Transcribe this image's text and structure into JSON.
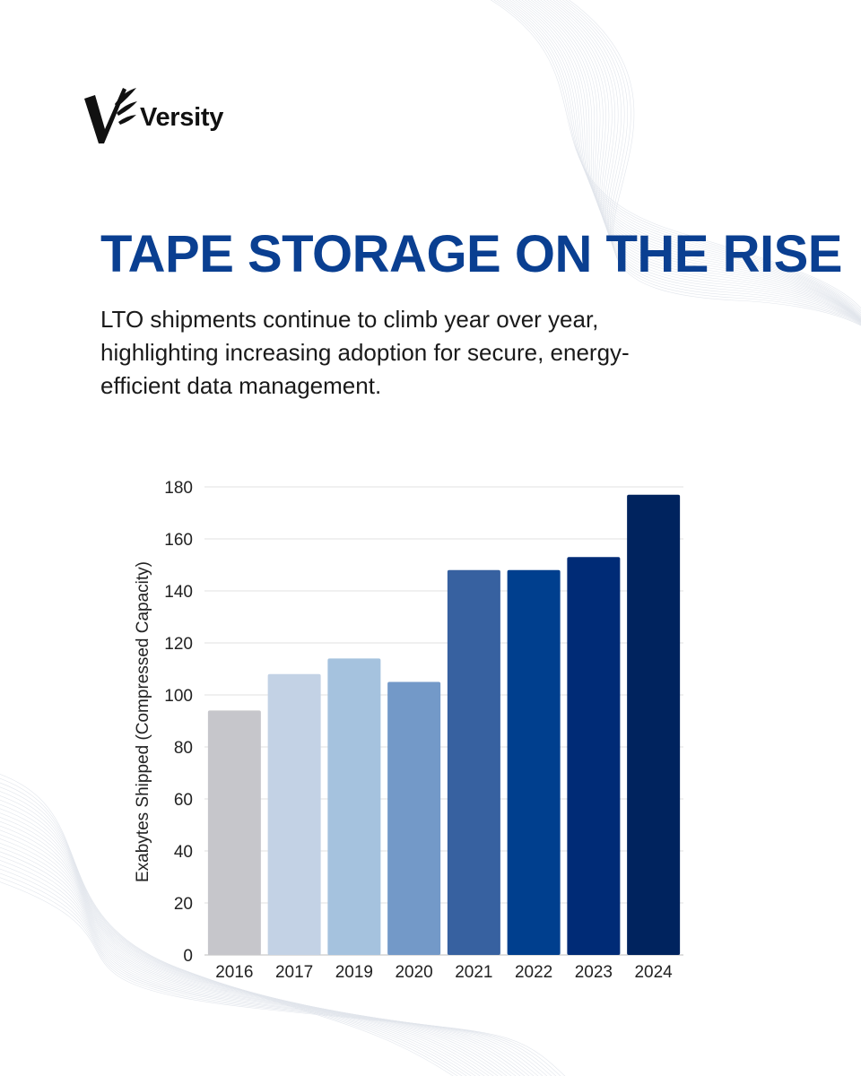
{
  "brand": {
    "name": "Versity",
    "logo_icon": "versity-wing-v-logo"
  },
  "header": {
    "title": "TAPE STORAGE ON THE RISE",
    "subtitle_line1": "LTO shipments continue to climb year over year,",
    "subtitle_line2": "highlighting increasing adoption for secure, energy-",
    "subtitle_line3": "efficient data management."
  },
  "colors": {
    "title": "#0a3f91",
    "background": "#ffffff"
  },
  "chart_data": {
    "type": "bar",
    "title": "",
    "xlabel": "",
    "ylabel": "Exabytes Shipped (Compressed Capacity)",
    "ylim": [
      0,
      180
    ],
    "yticks": [
      0,
      20,
      40,
      60,
      80,
      100,
      120,
      140,
      160,
      180
    ],
    "grid": true,
    "legend": "none",
    "categories": [
      "2016",
      "2017",
      "2019",
      "2020",
      "2021",
      "2022",
      "2023",
      "2024"
    ],
    "values": [
      94,
      108,
      114,
      105,
      148,
      148,
      153,
      177
    ],
    "bar_colors": [
      "#c6c6cb",
      "#c3d2e5",
      "#a5c2de",
      "#7399c8",
      "#3761a0",
      "#003f8e",
      "#002b76",
      "#00235e"
    ]
  }
}
